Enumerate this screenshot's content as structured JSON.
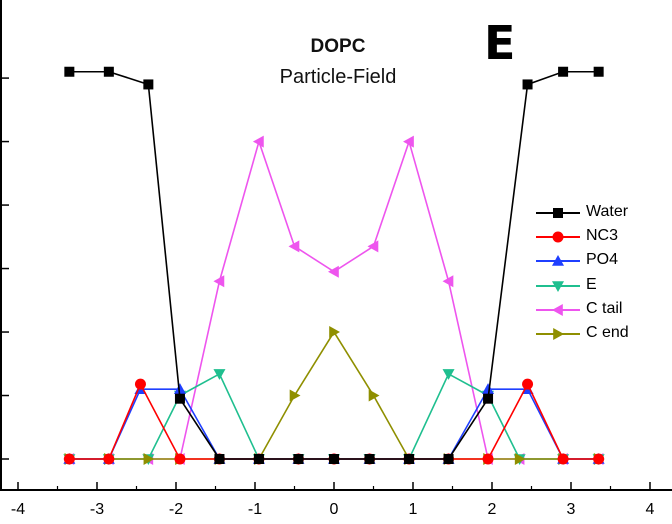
{
  "panel_label": "E",
  "chart_data": {
    "type": "line",
    "title": "DOPC",
    "subtitle": "Particle-Field",
    "xlabel": "",
    "ylabel": "",
    "xlim": [
      -4,
      4
    ],
    "ylim": [
      0,
      6.6
    ],
    "xticks": [
      "-4",
      "-3",
      "-2",
      "-1",
      "0",
      "1",
      "2",
      "3",
      "4"
    ],
    "grid": false,
    "legend_position": "right",
    "series": [
      {
        "name": "Water",
        "color": "#000000",
        "marker": "square",
        "x": [
          -3.35,
          -2.85,
          -2.35,
          -1.95,
          -1.45,
          -0.95,
          -0.45,
          0,
          0.45,
          0.95,
          1.45,
          1.95,
          2.45,
          2.9,
          3.35
        ],
        "y": [
          6.1,
          6.1,
          5.9,
          0.95,
          0,
          0,
          0,
          0,
          0,
          0,
          0,
          0.95,
          5.9,
          6.1,
          6.1
        ]
      },
      {
        "name": "NC3",
        "color": "#ff0000",
        "marker": "circle",
        "x": [
          -3.35,
          -2.85,
          -2.45,
          -1.95,
          -1.45,
          -0.95,
          -0.45,
          0,
          0.45,
          0.95,
          1.45,
          1.95,
          2.45,
          2.9,
          3.35
        ],
        "y": [
          0,
          0,
          1.18,
          0,
          0,
          0,
          0,
          0,
          0,
          0,
          0,
          0,
          1.18,
          0,
          0
        ]
      },
      {
        "name": "PO4",
        "color": "#1f3fff",
        "marker": "triangle-up",
        "x": [
          -3.35,
          -2.85,
          -2.45,
          -1.95,
          -1.45,
          -0.95,
          -0.45,
          0,
          0.45,
          0.95,
          1.45,
          1.95,
          2.45,
          2.9,
          3.35
        ],
        "y": [
          0,
          0,
          1.1,
          1.1,
          0,
          0,
          0,
          0,
          0,
          0,
          0,
          1.1,
          1.1,
          0,
          0
        ]
      },
      {
        "name": "E",
        "color": "#1fbf8f",
        "marker": "triangle-down",
        "x": [
          -3.35,
          -2.85,
          -2.35,
          -1.95,
          -1.45,
          -0.95,
          -0.45,
          0,
          0.45,
          0.95,
          1.45,
          1.95,
          2.35,
          2.9,
          3.35
        ],
        "y": [
          0,
          0,
          0,
          1.0,
          1.34,
          0,
          0,
          0,
          0,
          0,
          1.34,
          1.0,
          0,
          0,
          0
        ]
      },
      {
        "name": "C tail",
        "color": "#ee55ee",
        "marker": "triangle-left",
        "x": [
          -3.35,
          -2.85,
          -2.35,
          -1.95,
          -1.45,
          -0.95,
          -0.5,
          0,
          0.5,
          0.95,
          1.45,
          1.95,
          2.35,
          2.9,
          3.35
        ],
        "y": [
          0,
          0,
          0,
          0,
          2.8,
          5.0,
          3.35,
          2.95,
          3.35,
          5.0,
          2.8,
          0,
          0,
          0,
          0
        ]
      },
      {
        "name": "C end",
        "color": "#8f8f00",
        "marker": "triangle-right",
        "x": [
          -3.35,
          -2.85,
          -2.35,
          -1.95,
          -1.45,
          -0.95,
          -0.5,
          0,
          0.5,
          0.95,
          1.45,
          1.95,
          2.35,
          2.9,
          3.35
        ],
        "y": [
          0,
          0,
          0,
          0,
          0,
          0,
          1.0,
          2.0,
          1.0,
          0,
          0,
          0,
          0,
          0,
          0
        ]
      }
    ]
  }
}
